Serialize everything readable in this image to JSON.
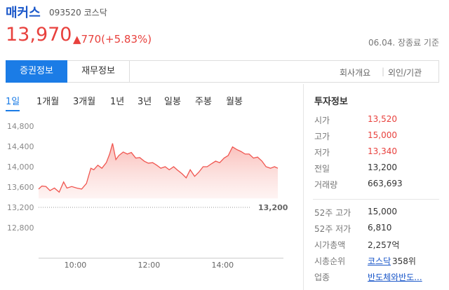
{
  "header": {
    "name": "매커스",
    "code": "093520 코스닥",
    "price": "13,970",
    "change": "▲770(+5.83%)",
    "asof": "06.04. 장종료 기준"
  },
  "tabs": {
    "main": [
      "증권정보",
      "재무정보"
    ],
    "links": [
      "회사개요",
      "외인/기관"
    ],
    "periods": [
      "1일",
      "1개월",
      "3개월",
      "1년",
      "3년",
      "일봉",
      "주봉",
      "월봉"
    ]
  },
  "chart_data": {
    "type": "area",
    "color": "#f05650",
    "x": [
      9.0,
      9.09,
      9.2,
      9.31,
      9.43,
      9.56,
      9.68,
      9.77,
      9.9,
      10.04,
      10.17,
      10.3,
      10.42,
      10.5,
      10.61,
      10.72,
      10.84,
      10.93,
      11.01,
      11.1,
      11.18,
      11.3,
      11.41,
      11.52,
      11.64,
      11.75,
      11.87,
      11.98,
      12.1,
      12.21,
      12.32,
      12.44,
      12.55,
      12.67,
      12.78,
      12.9,
      13.01,
      13.12,
      13.24,
      13.35,
      13.47,
      13.58,
      13.7,
      13.81,
      13.92,
      14.04,
      14.15,
      14.27,
      14.38,
      14.5,
      14.61,
      14.72,
      14.84,
      14.95,
      15.07,
      15.18,
      15.3,
      15.41,
      15.5
    ],
    "series": [
      {
        "color": "#f05650",
        "values": [
          13560,
          13620,
          13610,
          13530,
          13580,
          13500,
          13700,
          13580,
          13610,
          13580,
          13560,
          13670,
          13970,
          13940,
          14030,
          13970,
          14080,
          14250,
          14460,
          14140,
          14220,
          14290,
          14250,
          14280,
          14170,
          14180,
          14110,
          14070,
          14080,
          14030,
          13970,
          14000,
          13940,
          14000,
          13930,
          13860,
          13780,
          13940,
          13810,
          13890,
          14000,
          14000,
          14060,
          14110,
          14080,
          14170,
          14220,
          14390,
          14340,
          14300,
          14250,
          14250,
          14170,
          14190,
          14110,
          14000,
          13970,
          14000,
          13970
        ]
      }
    ],
    "xlim": [
      9,
      15.5
    ],
    "ylim": [
      12200,
      15000
    ],
    "xticks": [
      {
        "value": 10,
        "label": "10:00"
      },
      {
        "value": 12,
        "label": "12:00"
      },
      {
        "value": 14,
        "label": "14:00"
      }
    ],
    "yticks": [
      {
        "value": 12800,
        "label": "12,800"
      },
      {
        "value": 13200,
        "label": "13,200"
      },
      {
        "value": 13600,
        "label": "13,600"
      },
      {
        "value": 14000,
        "label": "14,000"
      },
      {
        "value": 14400,
        "label": "14,400"
      },
      {
        "value": 14800,
        "label": "14,800"
      }
    ],
    "reference": {
      "value": 13200,
      "label": "13,200"
    }
  },
  "info": {
    "title": "투자정보",
    "rows": [
      {
        "label": "시가",
        "value": "13,520"
      },
      {
        "label": "고가",
        "value": "15,000"
      },
      {
        "label": "저가",
        "value": "13,340"
      },
      {
        "label": "전일",
        "value": "13,200"
      },
      {
        "label": "거래량",
        "value": "663,693"
      }
    ],
    "rows2": [
      {
        "label": "52주 고가",
        "value": "15,000"
      },
      {
        "label": "52주 저가",
        "value": "6,810"
      },
      {
        "label": "시가총액",
        "value": "2,257억"
      },
      {
        "label": "시총순위",
        "link": "코스닥",
        "value": "358위"
      },
      {
        "label": "업종",
        "link": "반도체와반도..."
      }
    ]
  }
}
